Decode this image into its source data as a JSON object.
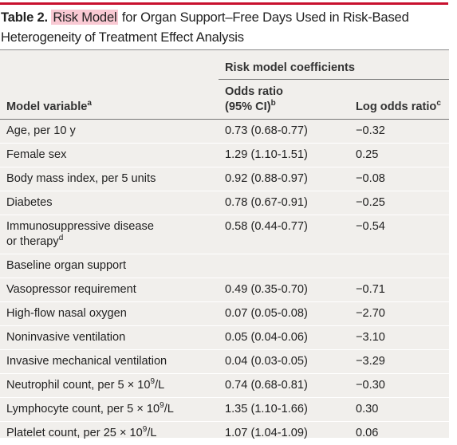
{
  "title": {
    "label": "Table 2.",
    "highlight": "Risk Model",
    "rest": "for Organ Support–Free Days Used in Risk-Based Heterogeneity of Treatment Effect Analysis"
  },
  "table": {
    "group_header": "Risk model coefficients",
    "headers": [
      {
        "text": "Model variable",
        "sup": "a"
      },
      {
        "lines": [
          "Odds ratio",
          "(95% CI)"
        ],
        "sup": "b"
      },
      {
        "text": "Log odds ratio",
        "sup": "c"
      }
    ],
    "rows": [
      [
        "Age, per 10 y",
        "0.73 (0.68-0.77)",
        "−0.32"
      ],
      [
        "Female sex",
        "1.29 (1.10-1.51)",
        "0.25"
      ],
      [
        "Body mass index, per 5 units",
        "0.92 (0.88-0.97)",
        "−0.08"
      ],
      [
        "Diabetes",
        "0.78 (0.67-0.91)",
        "−0.25"
      ],
      [
        {
          "lines": [
            "Immunosuppressive disease",
            "or therapy"
          ],
          "sup": "d"
        },
        "0.58 (0.44-0.77)",
        "−0.54"
      ],
      [
        "Baseline organ support",
        "",
        ""
      ],
      [
        "Vasopressor requirement",
        "0.49 (0.35-0.70)",
        "−0.71"
      ],
      [
        "High-flow nasal oxygen",
        "0.07 (0.05-0.08)",
        "−2.70"
      ],
      [
        "Noninvasive ventilation",
        "0.05 (0.04-0.06)",
        "−3.10"
      ],
      [
        "Invasive mechanical ventilation",
        "0.04 (0.03-0.05)",
        "−3.29"
      ],
      [
        {
          "text": "Neutrophil count, per 5 × 10",
          "sup": "9",
          "after": "/L"
        },
        "0.74 (0.68-0.81)",
        "−0.30"
      ],
      [
        {
          "text": "Lymphocyte count, per 5 × 10",
          "sup": "9",
          "after": "/L"
        },
        "1.35 (1.10-1.66)",
        "0.30"
      ],
      [
        {
          "text": "Platelet count, per 25 × 10",
          "sup": "9",
          "after": "/L"
        },
        "1.07 (1.04-1.09)",
        "0.06"
      ]
    ]
  }
}
